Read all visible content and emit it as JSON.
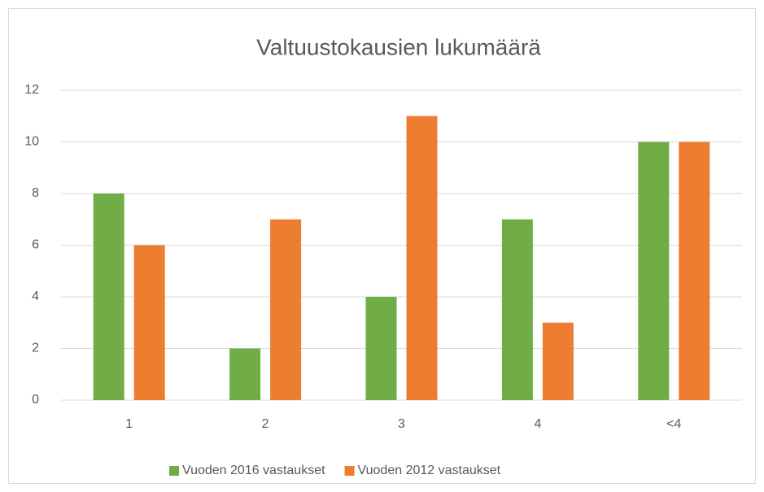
{
  "chart_data": {
    "type": "bar",
    "title": "Valtuustokausien lukumäärä",
    "categories": [
      "1",
      "2",
      "3",
      "4",
      "<4"
    ],
    "series": [
      {
        "name": "Vuoden 2016 vastaukset",
        "color": "#70ad47",
        "values": [
          8,
          2,
          4,
          7,
          10
        ]
      },
      {
        "name": "Vuoden 2012 vastaukset",
        "color": "#ed7d31",
        "values": [
          6,
          7,
          11,
          3,
          10
        ]
      }
    ],
    "ylim": [
      0,
      12
    ],
    "yticks": [
      0,
      2,
      4,
      6,
      8,
      10,
      12
    ],
    "grid": true,
    "legend": "bottom"
  }
}
